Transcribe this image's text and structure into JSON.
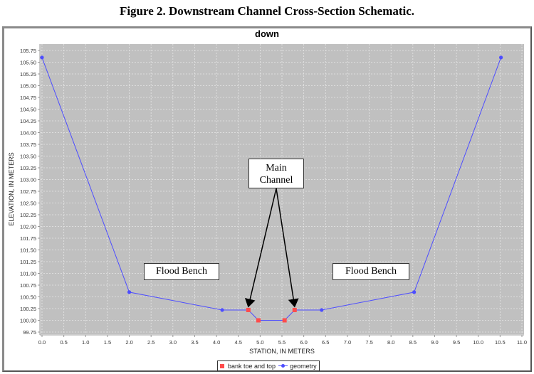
{
  "figure_title": "Figure 2. Downstream Channel Cross-Section Schematic.",
  "chart_title": "down",
  "colors": {
    "plot_bg": "#c0c0c0",
    "grid": "#e6e6e6",
    "geometry": "#4d4dff",
    "bank": "#ff4c4c"
  },
  "annotations": {
    "main_channel_line1": "Main",
    "main_channel_line2": "Channel",
    "flood_bench_left": "Flood Bench",
    "flood_bench_right": "Flood Bench"
  },
  "legend": {
    "bank": "bank toe and top",
    "geometry": "geometry"
  },
  "chart_data": {
    "type": "line",
    "title": "down",
    "xlabel": "STATION, IN METERS",
    "ylabel": "ELEVATION, IN METERS",
    "xlim": [
      0.0,
      11.0
    ],
    "ylim": [
      99.75,
      105.75
    ],
    "x_ticks": [
      "0.0",
      "0.5",
      "1.0",
      "1.5",
      "2.0",
      "2.5",
      "3.0",
      "3.5",
      "4.0",
      "4.5",
      "5.0",
      "5.5",
      "6.0",
      "6.5",
      "7.0",
      "7.5",
      "8.0",
      "8.5",
      "9.0",
      "9.5",
      "10.0",
      "10.5",
      "11.0"
    ],
    "y_ticks": [
      "99.75",
      "100.00",
      "100.25",
      "100.50",
      "100.75",
      "101.00",
      "101.25",
      "101.50",
      "101.75",
      "102.00",
      "102.25",
      "102.50",
      "102.75",
      "103.00",
      "103.25",
      "103.50",
      "103.75",
      "104.00",
      "104.25",
      "104.50",
      "104.75",
      "105.00",
      "105.25",
      "105.50",
      "105.75"
    ],
    "grid": true,
    "legend_position": "bottom",
    "series": [
      {
        "name": "geometry",
        "marker": "circle",
        "color": "#4d4dff",
        "x": [
          0.0,
          2.0,
          4.13,
          4.73,
          4.96,
          5.56,
          5.79,
          6.41,
          8.53,
          10.52
        ],
        "y": [
          105.6,
          100.6,
          100.22,
          100.22,
          100.0,
          100.0,
          100.22,
          100.22,
          100.6,
          105.6
        ]
      },
      {
        "name": "bank toe and top",
        "marker": "square",
        "color": "#ff4c4c",
        "x": [
          4.73,
          4.96,
          5.56,
          5.79
        ],
        "y": [
          100.22,
          100.0,
          100.0,
          100.22
        ]
      }
    ],
    "annotations": [
      {
        "text": "Main Channel",
        "arrows_to": [
          [
            4.73,
            100.22
          ],
          [
            5.79,
            100.22
          ]
        ]
      },
      {
        "text": "Flood Bench",
        "x": 3.2,
        "y": 101.03
      },
      {
        "text": "Flood Bench",
        "x": 7.6,
        "y": 101.03
      }
    ]
  }
}
